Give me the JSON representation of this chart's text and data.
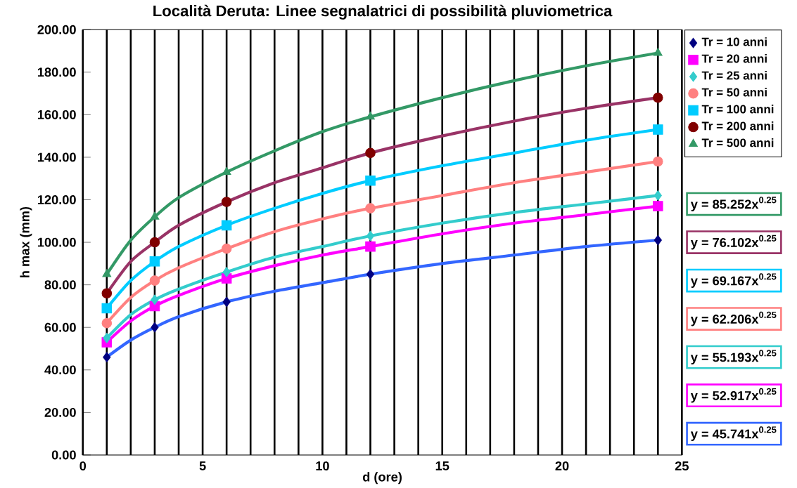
{
  "chart_data": {
    "type": "scatter",
    "title": "Località Deruta: Linee segnalatrici di possibilità pluviometrica",
    "xlabel": "d (ore)",
    "ylabel": "h max (mm)",
    "xlim": [
      0,
      25
    ],
    "ylim": [
      0,
      200
    ],
    "xticks": [
      0,
      {
        "value": 1,
        "label": null
      },
      {
        "value": 2,
        "label": null
      },
      {
        "value": 3,
        "label": null
      },
      {
        "value": 4,
        "label": null
      },
      5,
      {
        "value": 6,
        "label": null
      },
      {
        "value": 7,
        "label": null
      },
      {
        "value": 8,
        "label": null
      },
      {
        "value": 9,
        "label": null
      },
      10,
      {
        "value": 11,
        "label": null
      },
      {
        "value": 12,
        "label": null
      },
      {
        "value": 13,
        "label": null
      },
      {
        "value": 14,
        "label": null
      },
      15,
      {
        "value": 16,
        "label": null
      },
      {
        "value": 17,
        "label": null
      },
      {
        "value": 18,
        "label": null
      },
      {
        "value": 19,
        "label": null
      },
      20,
      {
        "value": 21,
        "label": null
      },
      {
        "value": 22,
        "label": null
      },
      {
        "value": 23,
        "label": null
      },
      {
        "value": 24,
        "label": null
      },
      25
    ],
    "yticks": [
      {
        "value": 0,
        "label": "0.00"
      },
      {
        "value": 20,
        "label": "20.00"
      },
      {
        "value": 40,
        "label": "40.00"
      },
      {
        "value": 60,
        "label": "60.00"
      },
      {
        "value": 80,
        "label": "80.00"
      },
      {
        "value": 100,
        "label": "100.00"
      },
      {
        "value": 120,
        "label": "120.00"
      },
      {
        "value": 140,
        "label": "140.00"
      },
      {
        "value": 160,
        "label": "160.00"
      },
      {
        "value": 180,
        "label": "180.00"
      },
      {
        "value": 200,
        "label": "200.00"
      }
    ],
    "grid": "x",
    "legend": "top right",
    "x": [
      1,
      3,
      6,
      12,
      24
    ],
    "series": [
      {
        "name": "Tr = 10 anni",
        "color": "#000080",
        "marker": "diamond",
        "values": [
          46,
          60,
          72,
          85,
          101
        ]
      },
      {
        "name": "Tr = 20 anni",
        "color": "#ff00ff",
        "marker": "square",
        "values": [
          53,
          70,
          83,
          98,
          117
        ]
      },
      {
        "name": "Tr = 25 anni",
        "color": "#33cccc",
        "marker": "diamond",
        "values": [
          55,
          73,
          86,
          103,
          122
        ]
      },
      {
        "name": "Tr = 50 anni",
        "color": "#ff8080",
        "marker": "circle",
        "values": [
          62,
          82,
          97,
          116,
          138
        ]
      },
      {
        "name": "Tr = 100 anni",
        "color": "#00ccff",
        "marker": "square",
        "values": [
          69,
          91,
          108,
          129,
          153
        ]
      },
      {
        "name": "Tr = 200 anni",
        "color": "#800000",
        "marker": "circle",
        "values": [
          76,
          100,
          119,
          142,
          168
        ]
      },
      {
        "name": "Tr = 500 anni",
        "color": "#339966",
        "marker": "triangle",
        "values": [
          85,
          112,
          133,
          159,
          189
        ]
      },
      {
        "type": "line",
        "color": "#3366ff",
        "x": [
          1,
          2,
          3,
          4,
          6,
          8,
          10,
          12,
          15,
          18,
          21,
          24
        ],
        "values": [
          46,
          54,
          60,
          65,
          72,
          77,
          81,
          85,
          90,
          94,
          98,
          101
        ]
      },
      {
        "type": "line",
        "color": "#ff00ff",
        "x": [
          1,
          2,
          3,
          4,
          6,
          8,
          10,
          12,
          15,
          18,
          21,
          24
        ],
        "values": [
          53,
          63,
          70,
          75,
          83,
          89,
          94,
          98,
          104,
          109,
          113,
          117
        ]
      },
      {
        "type": "line",
        "color": "#33cccc",
        "x": [
          1,
          2,
          3,
          4,
          6,
          8,
          10,
          12,
          15,
          18,
          21,
          24
        ],
        "values": [
          55,
          66,
          73,
          78,
          86,
          93,
          98,
          103,
          109,
          114,
          118,
          122
        ]
      },
      {
        "type": "line",
        "color": "#ff8080",
        "x": [
          1,
          2,
          3,
          4,
          6,
          8,
          10,
          12,
          15,
          18,
          21,
          24
        ],
        "values": [
          62,
          74,
          82,
          88,
          97,
          105,
          111,
          116,
          122,
          128,
          133,
          138
        ]
      },
      {
        "type": "line",
        "color": "#00ccff",
        "x": [
          1,
          2,
          3,
          4,
          6,
          8,
          10,
          12,
          15,
          18,
          21,
          24
        ],
        "values": [
          69,
          82,
          91,
          98,
          108,
          116,
          123,
          129,
          136,
          142,
          148,
          153
        ]
      },
      {
        "type": "line",
        "color": "#993366",
        "x": [
          1,
          2,
          3,
          4,
          6,
          8,
          10,
          12,
          15,
          18,
          21,
          24
        ],
        "values": [
          76,
          91,
          100,
          108,
          119,
          128,
          135,
          142,
          150,
          157,
          163,
          168
        ]
      },
      {
        "type": "line",
        "color": "#339966",
        "x": [
          1,
          2,
          3,
          4,
          6,
          8,
          10,
          12,
          15,
          18,
          21,
          24
        ],
        "values": [
          85,
          101,
          112,
          121,
          133,
          143,
          152,
          159,
          168,
          176,
          183,
          189
        ]
      }
    ],
    "annotations": [
      "y = 45.741x$^{0.25}$",
      "y = 52.917x$^{0.25}$",
      "y = 55.193x$^{0.25}$",
      "y = 62.206x$^{0.25}$",
      "y = 69.167x$^{0.25}$",
      "y = 76.102x$^{0.25}$",
      "y = 85.252x$^{0.25}$"
    ]
  }
}
